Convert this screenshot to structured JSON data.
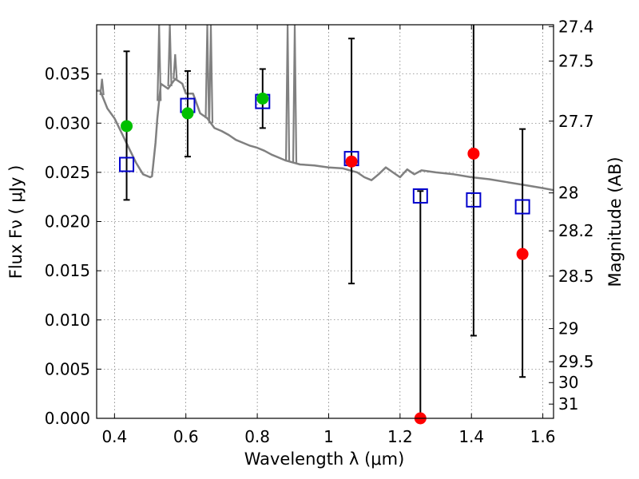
{
  "chart_data": {
    "type": "scatter",
    "xlabel_main": "Wavelength  λ",
    "xlabel_unit": " (μm)",
    "ylabel": "Flux  Fν  ( μJy )",
    "y2label": "Magnitude (AB)",
    "xlim": [
      0.35,
      1.63
    ],
    "ylim": [
      0.0,
      0.04
    ],
    "x_ticks": [
      0.4,
      0.6,
      0.8,
      1.0,
      1.2,
      1.4,
      1.6
    ],
    "x_tick_labels": [
      "0.4",
      "0.6",
      "0.8",
      "1",
      "1.2",
      "1.4",
      "1.6"
    ],
    "y_ticks": [
      0.0,
      0.005,
      0.01,
      0.015,
      0.02,
      0.025,
      0.03,
      0.035
    ],
    "y_tick_labels": [
      "0.000",
      "0.005",
      "0.010",
      "0.015",
      "0.020",
      "0.025",
      "0.030",
      "0.035"
    ],
    "y2_ticks": [
      27.4,
      27.5,
      27.7,
      28,
      28.2,
      28.5,
      29,
      29.5,
      30,
      31
    ],
    "y2_tick_labels": [
      "27.4",
      "27.5",
      "27.7",
      "28",
      "28.2",
      "28.5",
      "29",
      "29.5",
      "30",
      "31"
    ],
    "colors": {
      "model": "#808080",
      "green": "#00c000",
      "red": "#ff0000",
      "squares": "#0000cc",
      "errorbars": "#000000"
    },
    "model_spectrum": {
      "x": [
        0.35,
        0.36,
        0.38,
        0.4,
        0.42,
        0.44,
        0.46,
        0.48,
        0.5,
        0.505,
        0.515,
        0.52,
        0.53,
        0.55,
        0.57,
        0.59,
        0.6,
        0.62,
        0.64,
        0.66,
        0.68,
        0.7,
        0.72,
        0.74,
        0.76,
        0.78,
        0.8,
        0.82,
        0.84,
        0.86,
        0.88,
        0.92,
        0.96,
        1.0,
        1.04,
        1.08,
        1.1,
        1.12,
        1.14,
        1.16,
        1.18,
        1.2,
        1.22,
        1.24,
        1.26,
        1.28,
        1.3,
        1.35,
        1.4,
        1.45,
        1.5,
        1.55,
        1.6,
        1.63
      ],
      "y": [
        0.0333,
        0.0333,
        0.0315,
        0.0305,
        0.029,
        0.0275,
        0.026,
        0.0248,
        0.0245,
        0.0246,
        0.028,
        0.0305,
        0.034,
        0.0335,
        0.0345,
        0.034,
        0.033,
        0.033,
        0.031,
        0.0305,
        0.0295,
        0.0292,
        0.0288,
        0.0283,
        0.028,
        0.0277,
        0.0275,
        0.0272,
        0.0268,
        0.0265,
        0.0262,
        0.0258,
        0.0257,
        0.0255,
        0.0254,
        0.025,
        0.0245,
        0.0242,
        0.0248,
        0.0255,
        0.025,
        0.0245,
        0.0253,
        0.0248,
        0.0252,
        0.0251,
        0.025,
        0.0248,
        0.0245,
        0.0243,
        0.024,
        0.0237,
        0.0234,
        0.0232
      ]
    },
    "model_spikes": [
      {
        "x": 0.365,
        "y": 0.0345
      },
      {
        "x": 0.525,
        "y": 0.04
      },
      {
        "x": 0.555,
        "y": 0.04
      },
      {
        "x": 0.57,
        "y": 0.037
      },
      {
        "x": 0.66,
        "y": 0.04
      },
      {
        "x": 0.67,
        "y": 0.04
      },
      {
        "x": 0.885,
        "y": 0.04
      },
      {
        "x": 0.905,
        "y": 0.04
      }
    ],
    "series": [
      {
        "name": "green-points",
        "marker": "circle",
        "color": "green",
        "x": [
          0.434,
          0.605,
          0.815
        ],
        "y": [
          0.0297,
          0.031,
          0.0325
        ]
      },
      {
        "name": "red-points",
        "marker": "circle",
        "color": "red",
        "x": [
          1.064,
          1.257,
          1.406,
          1.543
        ],
        "y": [
          0.0261,
          0.0,
          0.0269,
          0.0167
        ]
      },
      {
        "name": "model-squares",
        "marker": "square",
        "color": "squares",
        "x": [
          0.434,
          0.605,
          0.815,
          1.064,
          1.257,
          1.406,
          1.543
        ],
        "y": [
          0.0258,
          0.0318,
          0.0322,
          0.0264,
          0.0226,
          0.0222,
          0.0215
        ]
      }
    ],
    "errorbars": [
      {
        "x": 0.434,
        "lo": 0.0222,
        "hi": 0.0373
      },
      {
        "x": 0.605,
        "lo": 0.0266,
        "hi": 0.0353
      },
      {
        "x": 0.815,
        "lo": 0.0295,
        "hi": 0.0355
      },
      {
        "x": 1.064,
        "lo": 0.0137,
        "hi": 0.0386
      },
      {
        "x": 1.257,
        "lo": 0.0,
        "hi": 0.0231
      },
      {
        "x": 1.406,
        "lo": 0.0084,
        "hi": 0.04
      },
      {
        "x": 1.543,
        "lo": 0.0042,
        "hi": 0.0294
      }
    ],
    "grid": true
  }
}
